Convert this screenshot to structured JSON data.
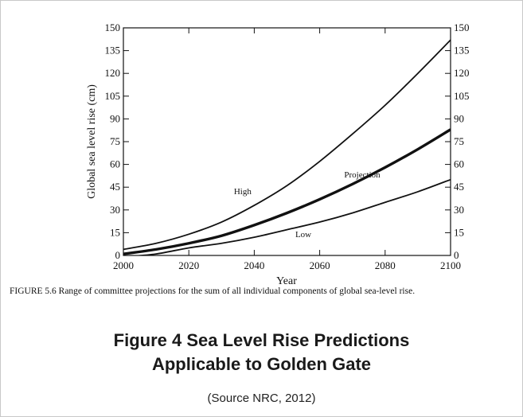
{
  "chart_data": {
    "type": "line",
    "xlabel": "Year",
    "ylabel": "Global sea level rise (cm)",
    "xlim": [
      2000,
      2100
    ],
    "ylim": [
      0,
      150
    ],
    "x_ticks": [
      2000,
      2020,
      2040,
      2060,
      2080,
      2100
    ],
    "y_ticks": [
      0,
      15,
      30,
      45,
      60,
      75,
      90,
      105,
      120,
      135,
      150
    ],
    "right_axis_ticks": [
      0,
      15,
      30,
      45,
      60,
      75,
      90,
      105,
      120,
      135,
      150
    ],
    "grid": false,
    "x": [
      2000,
      2010,
      2020,
      2030,
      2040,
      2050,
      2060,
      2070,
      2080,
      2090,
      2100
    ],
    "series": [
      {
        "name": "High",
        "values": [
          4,
          8,
          14,
          22,
          33,
          46,
          62,
          80,
          99,
          120,
          142
        ],
        "line_weight": "thin"
      },
      {
        "name": "Projection",
        "values": [
          1,
          4,
          8,
          13,
          20,
          28,
          37,
          47,
          58,
          70,
          83
        ],
        "line_weight": "thick"
      },
      {
        "name": "Low",
        "values": [
          -1,
          1,
          5,
          8,
          12,
          17,
          22,
          28,
          35,
          42,
          50
        ],
        "line_weight": "thin"
      }
    ],
    "line_color": "#111111"
  },
  "caption": "FIGURE 5.6  Range of committee projections for the sum of all individual components of global sea-level rise.",
  "title_line1": "Figure 4 Sea Level Rise Predictions",
  "title_line2": "Applicable to Golden Gate",
  "source": "(Source NRC, 2012)"
}
